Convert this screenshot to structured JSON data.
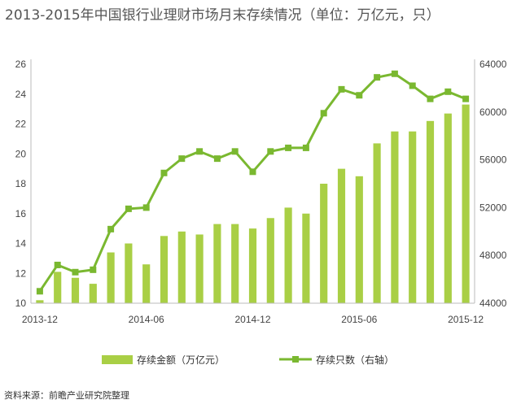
{
  "title": "2013-2015年中国银行业理财市场月末存续情况（单位：万亿元，只）",
  "source": "资料来源：前瞻产业研究院整理",
  "colors": {
    "bar": "#a9cf45",
    "line": "#7ab830",
    "axis": "#bbbbbb"
  },
  "chart_data": {
    "type": "bar",
    "x_tick_labels": [
      "2013-12",
      "2014-06",
      "2014-12",
      "2015-06",
      "2015-12"
    ],
    "categories": [
      "2013-12",
      "2014-01",
      "2014-02",
      "2014-03",
      "2014-04",
      "2014-05",
      "2014-06",
      "2014-07",
      "2014-08",
      "2014-09",
      "2014-10",
      "2014-11",
      "2014-12",
      "2015-01",
      "2015-02",
      "2015-03",
      "2015-04",
      "2015-05",
      "2015-06",
      "2015-07",
      "2015-08",
      "2015-09",
      "2015-10",
      "2015-11",
      "2015-12"
    ],
    "series": [
      {
        "name": "存续金额（万亿元）",
        "type": "bar",
        "axis": "left",
        "values": [
          10.2,
          12.1,
          11.7,
          11.3,
          13.4,
          14.0,
          12.6,
          14.5,
          14.8,
          14.6,
          15.3,
          15.3,
          15.0,
          15.7,
          16.4,
          16.0,
          18.0,
          19.0,
          18.5,
          20.7,
          21.5,
          21.5,
          22.2,
          22.7,
          23.3
        ]
      },
      {
        "name": "存续只数（右轴）",
        "type": "line",
        "axis": "right",
        "values": [
          45000,
          47200,
          46600,
          46800,
          50200,
          51900,
          52000,
          54900,
          56100,
          56700,
          56100,
          56700,
          55000,
          56700,
          57000,
          57000,
          59900,
          61900,
          61400,
          62900,
          63200,
          62200,
          61100,
          61700,
          61100
        ]
      }
    ],
    "y_left": {
      "ticks": [
        10,
        12,
        14,
        16,
        18,
        20,
        22,
        24,
        26
      ],
      "ylim": [
        10,
        26
      ]
    },
    "y_right": {
      "ticks": [
        44000,
        48000,
        52000,
        56000,
        60000,
        64000
      ],
      "ylim": [
        44000,
        64000
      ]
    },
    "legend": "bottom"
  }
}
